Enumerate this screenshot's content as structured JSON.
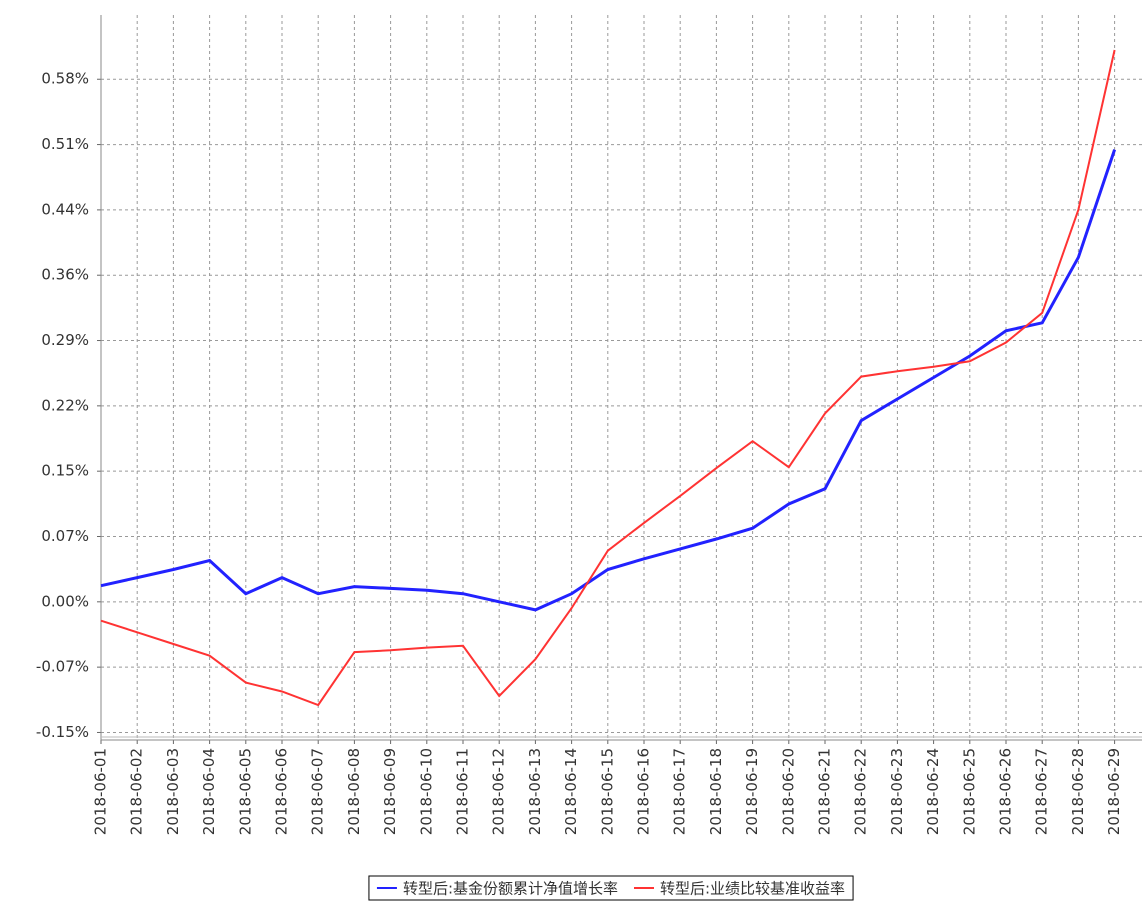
{
  "chart_data": {
    "type": "line",
    "x": [
      "2018-06-01",
      "2018-06-02",
      "2018-06-03",
      "2018-06-04",
      "2018-06-05",
      "2018-06-06",
      "2018-06-07",
      "2018-06-08",
      "2018-06-09",
      "2018-06-10",
      "2018-06-11",
      "2018-06-12",
      "2018-06-13",
      "2018-06-14",
      "2018-06-15",
      "2018-06-16",
      "2018-06-17",
      "2018-06-18",
      "2018-06-19",
      "2018-06-20",
      "2018-06-21",
      "2018-06-22",
      "2018-06-23",
      "2018-06-24",
      "2018-06-25",
      "2018-06-26",
      "2018-06-27",
      "2018-06-28",
      "2018-06-29"
    ],
    "series": [
      {
        "name": "转型后:基金份额累计净值增长率",
        "color": "#2222ff",
        "values": [
          0.018,
          0.027,
          0.036,
          0.046,
          0.009,
          0.027,
          0.009,
          0.017,
          0.015,
          0.013,
          0.009,
          0.0,
          -0.009,
          0.009,
          0.036,
          0.048,
          0.059,
          0.07,
          0.082,
          0.109,
          0.126,
          0.202,
          0.226,
          0.25,
          0.274,
          0.302,
          0.311,
          0.384,
          0.504
        ]
      },
      {
        "name": "转型后:业绩比较基准收益率",
        "color": "#ff3333",
        "values": [
          -0.021,
          -0.034,
          -0.047,
          -0.06,
          -0.09,
          -0.1,
          -0.115,
          -0.056,
          -0.054,
          -0.051,
          -0.049,
          -0.105,
          -0.064,
          -0.007,
          0.057,
          0.088,
          0.118,
          0.149,
          0.179,
          0.15,
          0.21,
          0.251,
          0.257,
          0.262,
          0.268,
          0.289,
          0.322,
          0.437,
          0.615
        ]
      }
    ],
    "ylim": [
      -0.154,
      0.654
    ],
    "yticks": [
      {
        "value": -0.1456,
        "label": "-0.15%"
      },
      {
        "value": -0.0728,
        "label": "-0.07%"
      },
      {
        "value": 0,
        "label": "0.00%"
      },
      {
        "value": 0.0728,
        "label": "0.07%"
      },
      {
        "value": 0.1456,
        "label": "0.15%"
      },
      {
        "value": 0.2184,
        "label": "0.22%"
      },
      {
        "value": 0.2912,
        "label": "0.29%"
      },
      {
        "value": 0.364,
        "label": "0.36%"
      },
      {
        "value": 0.4368,
        "label": "0.44%"
      },
      {
        "value": 0.5096,
        "label": "0.51%"
      },
      {
        "value": 0.5824,
        "label": "0.58%"
      }
    ],
    "grid": true,
    "legend": "bottom"
  }
}
